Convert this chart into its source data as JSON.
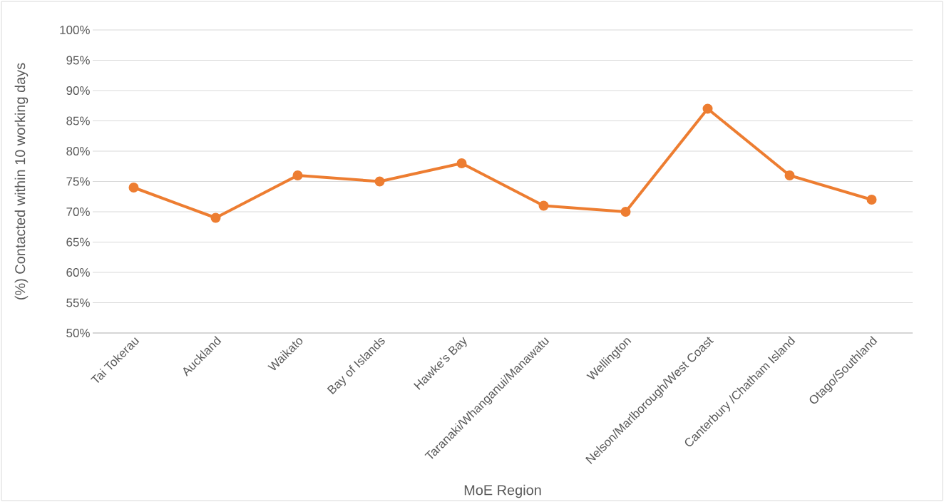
{
  "chart_data": {
    "type": "line",
    "xlabel": "MoE Region",
    "ylabel": "(%) Contacted within 10 working days",
    "categories": [
      "Tai Tokerau",
      "Auckland",
      "Waikato",
      "Bay of Islands",
      "Hawke's Bay",
      "Taranaki/Whanganui/Manawatu",
      "Wellington",
      "Nelson/Marlborough/West Coast",
      "Canterbury /Chatham Island",
      "Otago/Southland"
    ],
    "series": [
      {
        "color": "#ed7d31",
        "values": [
          74,
          69,
          76,
          75,
          78,
          71,
          70,
          87,
          76,
          72
        ]
      }
    ],
    "ylim": [
      50,
      100
    ],
    "yticks": [
      {
        "value": 50,
        "label": "50%"
      },
      {
        "value": 55,
        "label": "55%"
      },
      {
        "value": 60,
        "label": "60%"
      },
      {
        "value": 65,
        "label": "65%"
      },
      {
        "value": 70,
        "label": "70%"
      },
      {
        "value": 75,
        "label": "75%"
      },
      {
        "value": 80,
        "label": "80%"
      },
      {
        "value": 85,
        "label": "85%"
      },
      {
        "value": 90,
        "label": "90%"
      },
      {
        "value": 95,
        "label": "95%"
      },
      {
        "value": 100,
        "label": "100%"
      }
    ],
    "grid": "y",
    "marker": "circle",
    "line_style": "solid"
  }
}
